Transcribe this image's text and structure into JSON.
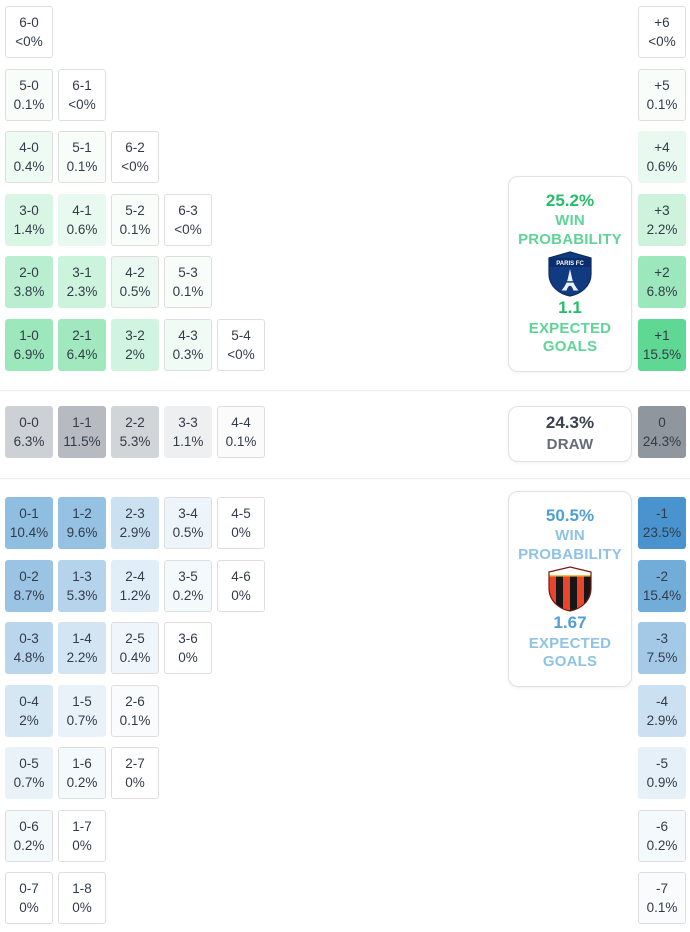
{
  "theme": {
    "home_color": "#2ecc71",
    "draw_color": "#8f969e",
    "away_color": "#4793cd",
    "text_color": "#333b49"
  },
  "cards": {
    "home": {
      "win_probability": "25.2%",
      "win_label": "WIN PROBABILITY",
      "team": "PARIS FC",
      "expected_goals": "1.1",
      "goals_label": "EXPECTED GOALS"
    },
    "draw": {
      "probability": "24.3%",
      "label": "DRAW"
    },
    "away": {
      "win_probability": "50.5%",
      "win_label": "WIN PROBABILITY",
      "expected_goals": "1.67",
      "goals_label": "EXPECTED GOALS"
    }
  },
  "chart_data": {
    "type": "heatmap",
    "description": "Correct-score probability matrix with goal-difference totals",
    "sections": {
      "home_win": {
        "color": "#2ecc71",
        "rows": [
          [
            {
              "score": "6-0",
              "pct": "<0%"
            }
          ],
          [
            {
              "score": "5-0",
              "pct": "0.1%"
            },
            {
              "score": "6-1",
              "pct": "<0%"
            }
          ],
          [
            {
              "score": "4-0",
              "pct": "0.4%"
            },
            {
              "score": "5-1",
              "pct": "0.1%"
            },
            {
              "score": "6-2",
              "pct": "<0%"
            }
          ],
          [
            {
              "score": "3-0",
              "pct": "1.4%"
            },
            {
              "score": "4-1",
              "pct": "0.6%"
            },
            {
              "score": "5-2",
              "pct": "0.1%"
            },
            {
              "score": "6-3",
              "pct": "<0%"
            }
          ],
          [
            {
              "score": "2-0",
              "pct": "3.8%"
            },
            {
              "score": "3-1",
              "pct": "2.3%"
            },
            {
              "score": "4-2",
              "pct": "0.5%"
            },
            {
              "score": "5-3",
              "pct": "0.1%"
            }
          ],
          [
            {
              "score": "1-0",
              "pct": "6.9%"
            },
            {
              "score": "2-1",
              "pct": "6.4%"
            },
            {
              "score": "3-2",
              "pct": "2%"
            },
            {
              "score": "4-3",
              "pct": "0.3%"
            },
            {
              "score": "5-4",
              "pct": "<0%"
            }
          ]
        ],
        "goal_diff": [
          {
            "diff": "+6",
            "pct": "<0%"
          },
          {
            "diff": "+5",
            "pct": "0.1%"
          },
          {
            "diff": "+4",
            "pct": "0.6%"
          },
          {
            "diff": "+3",
            "pct": "2.2%"
          },
          {
            "diff": "+2",
            "pct": "6.8%"
          },
          {
            "diff": "+1",
            "pct": "15.5%"
          }
        ]
      },
      "draw": {
        "color": "#8f969e",
        "rows": [
          [
            {
              "score": "0-0",
              "pct": "6.3%"
            },
            {
              "score": "1-1",
              "pct": "11.5%"
            },
            {
              "score": "2-2",
              "pct": "5.3%"
            },
            {
              "score": "3-3",
              "pct": "1.1%"
            },
            {
              "score": "4-4",
              "pct": "0.1%"
            }
          ]
        ],
        "goal_diff": [
          {
            "diff": "0",
            "pct": "24.3%"
          }
        ]
      },
      "away_win": {
        "color": "#4793cd",
        "rows": [
          [
            {
              "score": "0-1",
              "pct": "10.4%"
            },
            {
              "score": "1-2",
              "pct": "9.6%"
            },
            {
              "score": "2-3",
              "pct": "2.9%"
            },
            {
              "score": "3-4",
              "pct": "0.5%"
            },
            {
              "score": "4-5",
              "pct": "0%"
            }
          ],
          [
            {
              "score": "0-2",
              "pct": "8.7%"
            },
            {
              "score": "1-3",
              "pct": "5.3%"
            },
            {
              "score": "2-4",
              "pct": "1.2%"
            },
            {
              "score": "3-5",
              "pct": "0.2%"
            },
            {
              "score": "4-6",
              "pct": "0%"
            }
          ],
          [
            {
              "score": "0-3",
              "pct": "4.8%"
            },
            {
              "score": "1-4",
              "pct": "2.2%"
            },
            {
              "score": "2-5",
              "pct": "0.4%"
            },
            {
              "score": "3-6",
              "pct": "0%"
            }
          ],
          [
            {
              "score": "0-4",
              "pct": "2%"
            },
            {
              "score": "1-5",
              "pct": "0.7%"
            },
            {
              "score": "2-6",
              "pct": "0.1%"
            }
          ],
          [
            {
              "score": "0-5",
              "pct": "0.7%"
            },
            {
              "score": "1-6",
              "pct": "0.2%"
            },
            {
              "score": "2-7",
              "pct": "0%"
            }
          ],
          [
            {
              "score": "0-6",
              "pct": "0.2%"
            },
            {
              "score": "1-7",
              "pct": "0%"
            }
          ],
          [
            {
              "score": "0-7",
              "pct": "0%"
            },
            {
              "score": "1-8",
              "pct": "0%"
            }
          ]
        ],
        "goal_diff": [
          {
            "diff": "-1",
            "pct": "23.5%"
          },
          {
            "diff": "-2",
            "pct": "15.4%"
          },
          {
            "diff": "-3",
            "pct": "7.5%"
          },
          {
            "diff": "-4",
            "pct": "2.9%"
          },
          {
            "diff": "-5",
            "pct": "0.9%"
          },
          {
            "diff": "-6",
            "pct": "0.2%"
          },
          {
            "diff": "-7",
            "pct": "0.1%"
          }
        ]
      }
    }
  }
}
